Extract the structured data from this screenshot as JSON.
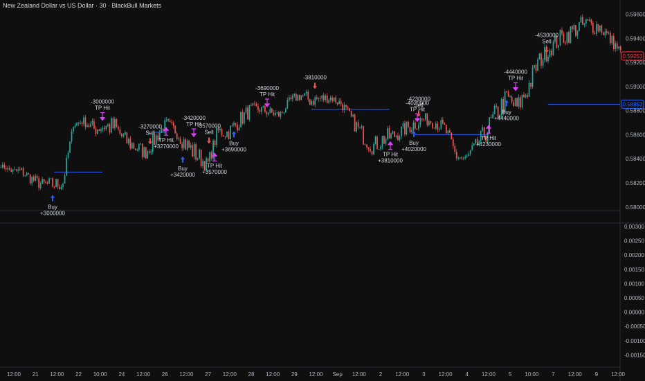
{
  "header": {
    "title": "New Zealand Dollar vs US Dollar · 30 · BlackBull Markets"
  },
  "price_axis": {
    "labels": [
      "0.59600",
      "0.59400",
      "0.59200",
      "0.59000",
      "0.58800",
      "0.58600",
      "0.58400",
      "0.58200",
      "0.58000"
    ],
    "current_price": "0.59253",
    "level_price": "0.58853",
    "current_color": "#f23645",
    "level_color": "#2962ff"
  },
  "indicator_axis": {
    "labels": [
      "0.00300",
      "0.00250",
      "0.00200",
      "0.00150",
      "0.00100",
      "0.00050",
      "0.00000",
      "-0.00050",
      "-0.00100",
      "-0.00150"
    ]
  },
  "time_axis": {
    "labels": [
      "12:00",
      "21",
      "12:00",
      "22",
      "10:00",
      "24",
      "12:00",
      "26",
      "12:00",
      "27",
      "12:00",
      "28",
      "12:00",
      "29",
      "12:00",
      "Sep",
      "12:00",
      "2",
      "12:00",
      "3",
      "12:00",
      "4",
      "12:00",
      "5",
      "10:00",
      "7",
      "12:00",
      "9",
      "12:00"
    ]
  },
  "colors": {
    "up": "#26a69a",
    "down": "#ef5350",
    "buy": "#2962ff",
    "tp": "#e040fb",
    "bg": "#0f0f0f"
  },
  "chart_data": {
    "type": "candlestick",
    "ylim": [
      0.5797,
      0.5962
    ],
    "price_path": [
      [
        0.5833,
        0.5836
      ],
      [
        0.5828,
        0.5832
      ],
      [
        0.5825,
        0.5834
      ],
      [
        0.5818,
        0.5828
      ],
      [
        0.5813,
        0.5824
      ],
      [
        0.5812,
        0.5825
      ],
      [
        0.5813,
        0.5826
      ],
      [
        0.5866,
        0.587
      ],
      [
        0.5868,
        0.5875
      ],
      [
        0.5858,
        0.5872
      ],
      [
        0.586,
        0.5874
      ],
      [
        0.5856,
        0.5876
      ],
      [
        0.5848,
        0.5863
      ],
      [
        0.5842,
        0.5858
      ],
      [
        0.5839,
        0.5851
      ],
      [
        0.585,
        0.5864
      ],
      [
        0.5866,
        0.5874
      ],
      [
        0.5857,
        0.5868
      ],
      [
        0.5842,
        0.586
      ],
      [
        0.5834,
        0.5852
      ],
      [
        0.5829,
        0.584
      ],
      [
        0.5857,
        0.5869
      ],
      [
        0.5855,
        0.5868
      ],
      [
        0.5864,
        0.5878
      ],
      [
        0.5873,
        0.5886
      ],
      [
        0.5877,
        0.5886
      ],
      [
        0.5874,
        0.5883
      ],
      [
        0.5872,
        0.588
      ],
      [
        0.5884,
        0.5892
      ],
      [
        0.5888,
        0.5898
      ],
      [
        0.5882,
        0.5895
      ],
      [
        0.5885,
        0.5895
      ],
      [
        0.5887,
        0.5894
      ],
      [
        0.5881,
        0.589
      ],
      [
        0.5866,
        0.5878
      ],
      [
        0.5852,
        0.5868
      ],
      [
        0.5843,
        0.5857
      ],
      [
        0.5848,
        0.5865
      ],
      [
        0.5852,
        0.5866
      ],
      [
        0.5858,
        0.587
      ],
      [
        0.5862,
        0.5876
      ],
      [
        0.5868,
        0.5878
      ],
      [
        0.5865,
        0.5877
      ],
      [
        0.5858,
        0.5871
      ],
      [
        0.5835,
        0.5852
      ],
      [
        0.5832,
        0.5845
      ],
      [
        0.5846,
        0.5857
      ],
      [
        0.5853,
        0.5872
      ],
      [
        0.5868,
        0.5888
      ],
      [
        0.588,
        0.59
      ],
      [
        0.5873,
        0.5891
      ],
      [
        0.5888,
        0.5908
      ],
      [
        0.5912,
        0.5928
      ],
      [
        0.5923,
        0.5937
      ],
      [
        0.5931,
        0.5947
      ],
      [
        0.5936,
        0.5952
      ],
      [
        0.5942,
        0.5958
      ],
      [
        0.5943,
        0.596
      ],
      [
        0.5943,
        0.5956
      ],
      [
        0.5933,
        0.5945
      ],
      [
        0.5925,
        0.5933
      ]
    ],
    "trades": [
      {
        "type": "buy",
        "label": "Buy",
        "value": "+3000000"
      },
      {
        "type": "tp_short",
        "label": "TP Hit",
        "value": "-3000000"
      },
      {
        "type": "sell",
        "label": "Sell",
        "value": "-3270000"
      },
      {
        "type": "tp_long",
        "label": "TP Hit",
        "value": "+3270000"
      },
      {
        "type": "buy",
        "label": "Buy",
        "value": "+3420000"
      },
      {
        "type": "tp_short",
        "label": "TP Hit",
        "value": "-3420000"
      },
      {
        "type": "sell",
        "label": "Sell",
        "value": "-3570000"
      },
      {
        "type": "tp_long",
        "label": "TP Hit",
        "value": "+3570000"
      },
      {
        "type": "buy",
        "label": "Buy",
        "value": "+3690000"
      },
      {
        "type": "tp_short",
        "label": "TP Hit",
        "value": "-3690000"
      },
      {
        "type": "sell",
        "label": "",
        "value": "-3810000"
      },
      {
        "type": "tp_long",
        "label": "TP Hit",
        "value": "+3810000"
      },
      {
        "type": "buy",
        "label": "Buy",
        "value": "+4020000"
      },
      {
        "type": "tp_short",
        "label": "TP Hit",
        "value": "-4020000"
      },
      {
        "type": "sell",
        "label": "Sell",
        "value": "-4230000"
      },
      {
        "type": "tp_long",
        "label": "TP Hit",
        "value": "+4230000"
      },
      {
        "type": "buy",
        "label": "Buy",
        "value": "+4440000"
      },
      {
        "type": "tp_short",
        "label": "TP Hit",
        "value": "-4440000"
      },
      {
        "type": "sell",
        "label": "Sell",
        "value": "-4530000"
      }
    ],
    "levels": [
      {
        "price": 0.5829
      },
      {
        "price": 0.5862
      },
      {
        "price": 0.5881
      },
      {
        "price": 0.586
      },
      {
        "price": 0.58853
      }
    ]
  }
}
